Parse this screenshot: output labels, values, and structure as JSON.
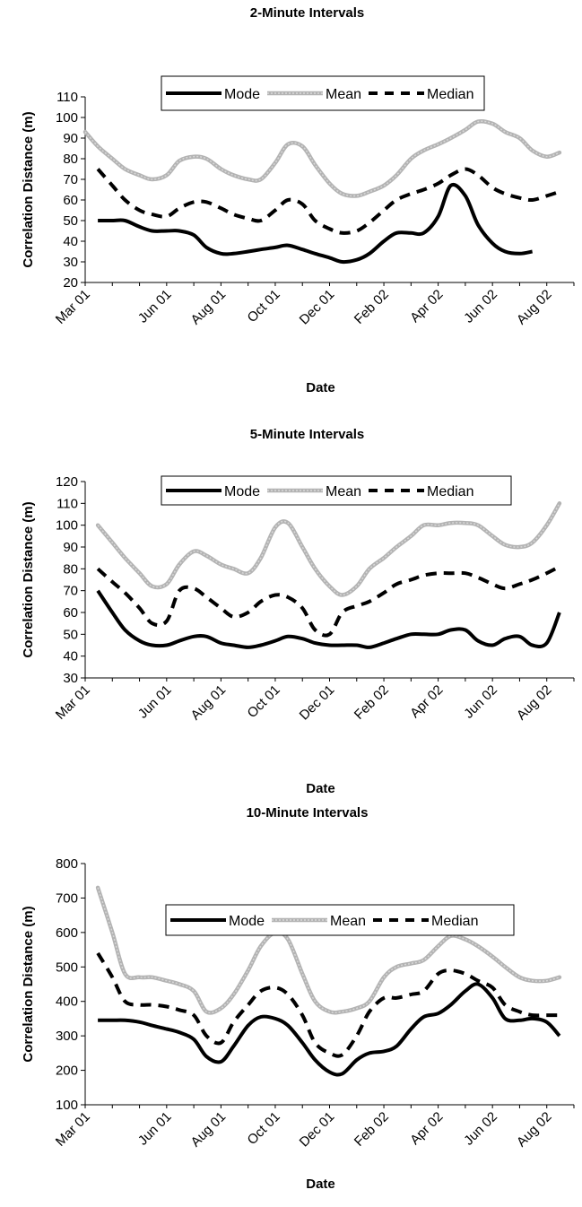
{
  "chart_data": [
    {
      "type": "line",
      "title": "2-Minute Intervals",
      "xlabel": "Date",
      "ylabel": "Correlation Distance (m)",
      "ylim": [
        20,
        110
      ],
      "yticks": [
        20,
        30,
        40,
        50,
        60,
        70,
        80,
        90,
        100,
        110
      ],
      "x_range_months": [
        "2001-03",
        "2002-08"
      ],
      "xticks": [
        "Mar 01",
        "Jun 01",
        "Aug 01",
        "Oct 01",
        "Dec 01",
        "Feb 02",
        "Apr 02",
        "Jun 02",
        "Aug 02"
      ],
      "legend_position": "top",
      "grid": false,
      "series": [
        {
          "name": "Mode",
          "color": "#000000",
          "style": "solid",
          "x": [
            "2001-03-15",
            "2001-04-01",
            "2001-04-15",
            "2001-05-01",
            "2001-05-15",
            "2001-06-01",
            "2001-06-15",
            "2001-07-01",
            "2001-07-15",
            "2001-08-01",
            "2001-08-15",
            "2001-09-01",
            "2001-09-15",
            "2001-10-01",
            "2001-10-15",
            "2001-11-01",
            "2001-11-15",
            "2001-12-01",
            "2001-12-15",
            "2002-01-01",
            "2002-01-15",
            "2002-02-01",
            "2002-02-15",
            "2002-03-01",
            "2002-03-15",
            "2002-04-01",
            "2002-04-15",
            "2002-05-01",
            "2002-05-15",
            "2002-06-01",
            "2002-06-15",
            "2002-07-01",
            "2002-07-15"
          ],
          "values": [
            50,
            50,
            50,
            47,
            45,
            45,
            45,
            43,
            37,
            34,
            34,
            35,
            36,
            37,
            38,
            36,
            34,
            32,
            30,
            31,
            34,
            40,
            44,
            44,
            44,
            52,
            67,
            62,
            48,
            39,
            35,
            34,
            35
          ]
        },
        {
          "name": "Mean",
          "color": "#a6a6a6",
          "style": "solid",
          "x": [
            "2001-03-01",
            "2001-03-15",
            "2001-04-01",
            "2001-04-15",
            "2001-05-01",
            "2001-05-15",
            "2001-06-01",
            "2001-06-15",
            "2001-07-01",
            "2001-07-15",
            "2001-08-01",
            "2001-08-15",
            "2001-09-01",
            "2001-09-15",
            "2001-10-01",
            "2001-10-15",
            "2001-11-01",
            "2001-11-15",
            "2001-12-01",
            "2001-12-15",
            "2002-01-01",
            "2002-01-15",
            "2002-02-01",
            "2002-02-15",
            "2002-03-01",
            "2002-03-15",
            "2002-04-01",
            "2002-04-15",
            "2002-05-01",
            "2002-05-15",
            "2002-06-01",
            "2002-06-15",
            "2002-07-01",
            "2002-07-15",
            "2002-08-01",
            "2002-08-15"
          ],
          "values": [
            93,
            86,
            80,
            75,
            72,
            70,
            72,
            79,
            81,
            80,
            75,
            72,
            70,
            70,
            78,
            87,
            86,
            77,
            68,
            63,
            62,
            64,
            67,
            72,
            80,
            84,
            87,
            90,
            94,
            98,
            97,
            93,
            90,
            84,
            81,
            83
          ]
        },
        {
          "name": "Median",
          "color": "#000000",
          "style": "dashed",
          "x": [
            "2001-03-15",
            "2001-04-01",
            "2001-04-15",
            "2001-05-01",
            "2001-05-15",
            "2001-06-01",
            "2001-06-15",
            "2001-07-01",
            "2001-07-15",
            "2001-08-01",
            "2001-08-15",
            "2001-09-01",
            "2001-09-15",
            "2001-10-01",
            "2001-10-15",
            "2001-11-01",
            "2001-11-15",
            "2001-12-01",
            "2001-12-15",
            "2002-01-01",
            "2002-01-15",
            "2002-02-01",
            "2002-02-15",
            "2002-03-01",
            "2002-03-15",
            "2002-04-01",
            "2002-04-15",
            "2002-05-01",
            "2002-05-15",
            "2002-06-01",
            "2002-06-15",
            "2002-07-01",
            "2002-07-15",
            "2002-08-01",
            "2002-08-15"
          ],
          "values": [
            75,
            67,
            60,
            55,
            53,
            52,
            56,
            59,
            59,
            56,
            53,
            51,
            50,
            55,
            60,
            58,
            50,
            46,
            44,
            45,
            49,
            55,
            60,
            63,
            65,
            68,
            72,
            75,
            72,
            66,
            63,
            61,
            60,
            62,
            64
          ]
        }
      ]
    },
    {
      "type": "line",
      "title": "5-Minute Intervals",
      "xlabel": "Date",
      "ylabel": "Correlation Distance (m)",
      "ylim": [
        30,
        120
      ],
      "yticks": [
        30,
        40,
        50,
        60,
        70,
        80,
        90,
        100,
        110,
        120
      ],
      "x_range_months": [
        "2001-03",
        "2002-08"
      ],
      "xticks": [
        "Mar 01",
        "Jun 01",
        "Aug 01",
        "Oct 01",
        "Dec 01",
        "Feb 02",
        "Apr 02",
        "Jun 02",
        "Aug 02"
      ],
      "legend_position": "top",
      "grid": false,
      "series": [
        {
          "name": "Mode",
          "color": "#000000",
          "style": "solid",
          "x": [
            "2001-03-15",
            "2001-04-01",
            "2001-04-15",
            "2001-05-01",
            "2001-05-15",
            "2001-06-01",
            "2001-06-15",
            "2001-07-01",
            "2001-07-15",
            "2001-08-01",
            "2001-08-15",
            "2001-09-01",
            "2001-09-15",
            "2001-10-01",
            "2001-10-15",
            "2001-11-01",
            "2001-11-15",
            "2001-12-01",
            "2001-12-15",
            "2002-01-01",
            "2002-01-15",
            "2002-02-01",
            "2002-02-15",
            "2002-03-01",
            "2002-03-15",
            "2002-04-01",
            "2002-04-15",
            "2002-05-01",
            "2002-05-15",
            "2002-06-01",
            "2002-06-15",
            "2002-07-01",
            "2002-07-15",
            "2002-08-01",
            "2002-08-15"
          ],
          "values": [
            70,
            60,
            52,
            47,
            45,
            45,
            47,
            49,
            49,
            46,
            45,
            44,
            45,
            47,
            49,
            48,
            46,
            45,
            45,
            45,
            44,
            46,
            48,
            50,
            50,
            50,
            52,
            52,
            47,
            45,
            48,
            49,
            45,
            46,
            60
          ]
        },
        {
          "name": "Mean",
          "color": "#a6a6a6",
          "style": "solid",
          "x": [
            "2001-03-15",
            "2001-04-01",
            "2001-04-15",
            "2001-05-01",
            "2001-05-15",
            "2001-06-01",
            "2001-06-15",
            "2001-07-01",
            "2001-07-15",
            "2001-08-01",
            "2001-08-15",
            "2001-09-01",
            "2001-09-15",
            "2001-10-01",
            "2001-10-15",
            "2001-11-01",
            "2001-11-15",
            "2001-12-01",
            "2001-12-15",
            "2002-01-01",
            "2002-01-15",
            "2002-02-01",
            "2002-02-15",
            "2002-03-01",
            "2002-03-15",
            "2002-04-01",
            "2002-04-15",
            "2002-05-01",
            "2002-05-15",
            "2002-06-01",
            "2002-06-15",
            "2002-07-01",
            "2002-07-15",
            "2002-08-01",
            "2002-08-15"
          ],
          "values": [
            100,
            92,
            85,
            78,
            72,
            73,
            82,
            88,
            86,
            82,
            80,
            78,
            85,
            99,
            101,
            90,
            80,
            72,
            68,
            72,
            80,
            85,
            90,
            95,
            100,
            100,
            101,
            101,
            100,
            95,
            91,
            90,
            92,
            100,
            110
          ]
        },
        {
          "name": "Median",
          "color": "#000000",
          "style": "dashed",
          "x": [
            "2001-03-15",
            "2001-04-01",
            "2001-04-15",
            "2001-05-01",
            "2001-05-15",
            "2001-06-01",
            "2001-06-15",
            "2001-07-01",
            "2001-07-15",
            "2001-08-01",
            "2001-08-15",
            "2001-09-01",
            "2001-09-15",
            "2001-10-01",
            "2001-10-15",
            "2001-11-01",
            "2001-11-15",
            "2001-12-01",
            "2001-12-15",
            "2002-01-01",
            "2002-01-15",
            "2002-02-01",
            "2002-02-15",
            "2002-03-01",
            "2002-03-15",
            "2002-04-01",
            "2002-04-15",
            "2002-05-01",
            "2002-05-15",
            "2002-06-01",
            "2002-06-15",
            "2002-07-01",
            "2002-07-15",
            "2002-08-01",
            "2002-08-15"
          ],
          "values": [
            80,
            74,
            69,
            62,
            55,
            56,
            70,
            71,
            67,
            62,
            58,
            60,
            65,
            68,
            67,
            62,
            52,
            50,
            60,
            63,
            65,
            69,
            73,
            75,
            77,
            78,
            78,
            78,
            76,
            73,
            71,
            73,
            75,
            78,
            81
          ]
        }
      ]
    },
    {
      "type": "line",
      "title": "10-Minute Intervals",
      "xlabel": "Date",
      "ylabel": "Correlation Distance (m)",
      "ylim": [
        100,
        800
      ],
      "yticks": [
        100,
        200,
        300,
        400,
        500,
        600,
        700,
        800
      ],
      "x_range_months": [
        "2001-03",
        "2002-08"
      ],
      "xticks": [
        "Mar 01",
        "Jun 01",
        "Aug 01",
        "Oct 01",
        "Dec 01",
        "Feb 02",
        "Apr 02",
        "Jun 02",
        "Aug 02"
      ],
      "legend_position": "top",
      "grid": false,
      "series": [
        {
          "name": "Mode",
          "color": "#000000",
          "style": "solid",
          "x": [
            "2001-03-15",
            "2001-04-01",
            "2001-04-15",
            "2001-05-01",
            "2001-05-15",
            "2001-06-01",
            "2001-06-15",
            "2001-07-01",
            "2001-07-15",
            "2001-08-01",
            "2001-08-15",
            "2001-09-01",
            "2001-09-15",
            "2001-10-01",
            "2001-10-15",
            "2001-11-01",
            "2001-11-15",
            "2001-12-01",
            "2001-12-15",
            "2002-01-01",
            "2002-01-15",
            "2002-02-01",
            "2002-02-15",
            "2002-03-01",
            "2002-03-15",
            "2002-04-01",
            "2002-04-15",
            "2002-05-01",
            "2002-05-15",
            "2002-06-01",
            "2002-06-15",
            "2002-07-01",
            "2002-07-15",
            "2002-08-01",
            "2002-08-15"
          ],
          "values": [
            345,
            345,
            345,
            340,
            330,
            320,
            310,
            290,
            240,
            225,
            270,
            330,
            355,
            350,
            330,
            280,
            230,
            195,
            190,
            230,
            250,
            255,
            270,
            320,
            355,
            365,
            390,
            430,
            450,
            410,
            350,
            345,
            350,
            340,
            300
          ]
        },
        {
          "name": "Mean",
          "color": "#a6a6a6",
          "style": "solid",
          "x": [
            "2001-03-15",
            "2001-04-01",
            "2001-04-15",
            "2001-05-01",
            "2001-05-15",
            "2001-06-01",
            "2001-06-15",
            "2001-07-01",
            "2001-07-15",
            "2001-08-01",
            "2001-08-15",
            "2001-09-01",
            "2001-09-15",
            "2001-10-01",
            "2001-10-15",
            "2001-11-01",
            "2001-11-15",
            "2001-12-01",
            "2001-12-15",
            "2002-01-01",
            "2002-01-15",
            "2002-02-01",
            "2002-02-15",
            "2002-03-01",
            "2002-03-15",
            "2002-04-01",
            "2002-04-15",
            "2002-05-01",
            "2002-05-15",
            "2002-06-01",
            "2002-06-15",
            "2002-07-01",
            "2002-07-15",
            "2002-08-01",
            "2002-08-15"
          ],
          "values": [
            730,
            600,
            480,
            470,
            470,
            460,
            450,
            430,
            370,
            380,
            420,
            490,
            560,
            600,
            580,
            480,
            400,
            370,
            370,
            380,
            400,
            470,
            500,
            510,
            520,
            560,
            590,
            580,
            560,
            530,
            500,
            470,
            460,
            460,
            470
          ]
        },
        {
          "name": "Median",
          "color": "#000000",
          "style": "dashed",
          "x": [
            "2001-03-15",
            "2001-04-01",
            "2001-04-15",
            "2001-05-01",
            "2001-05-15",
            "2001-06-01",
            "2001-06-15",
            "2001-07-01",
            "2001-07-15",
            "2001-08-01",
            "2001-08-15",
            "2001-09-01",
            "2001-09-15",
            "2001-10-01",
            "2001-10-15",
            "2001-11-01",
            "2001-11-15",
            "2001-12-01",
            "2001-12-15",
            "2002-01-01",
            "2002-01-15",
            "2002-02-01",
            "2002-02-15",
            "2002-03-01",
            "2002-03-15",
            "2002-04-01",
            "2002-04-15",
            "2002-05-01",
            "2002-05-15",
            "2002-06-01",
            "2002-06-15",
            "2002-07-01",
            "2002-07-15",
            "2002-08-01",
            "2002-08-15"
          ],
          "values": [
            540,
            470,
            400,
            390,
            390,
            385,
            375,
            360,
            300,
            280,
            340,
            390,
            430,
            440,
            420,
            360,
            280,
            250,
            245,
            300,
            370,
            410,
            410,
            420,
            430,
            480,
            490,
            480,
            460,
            440,
            390,
            370,
            360,
            360,
            360
          ]
        }
      ]
    }
  ]
}
